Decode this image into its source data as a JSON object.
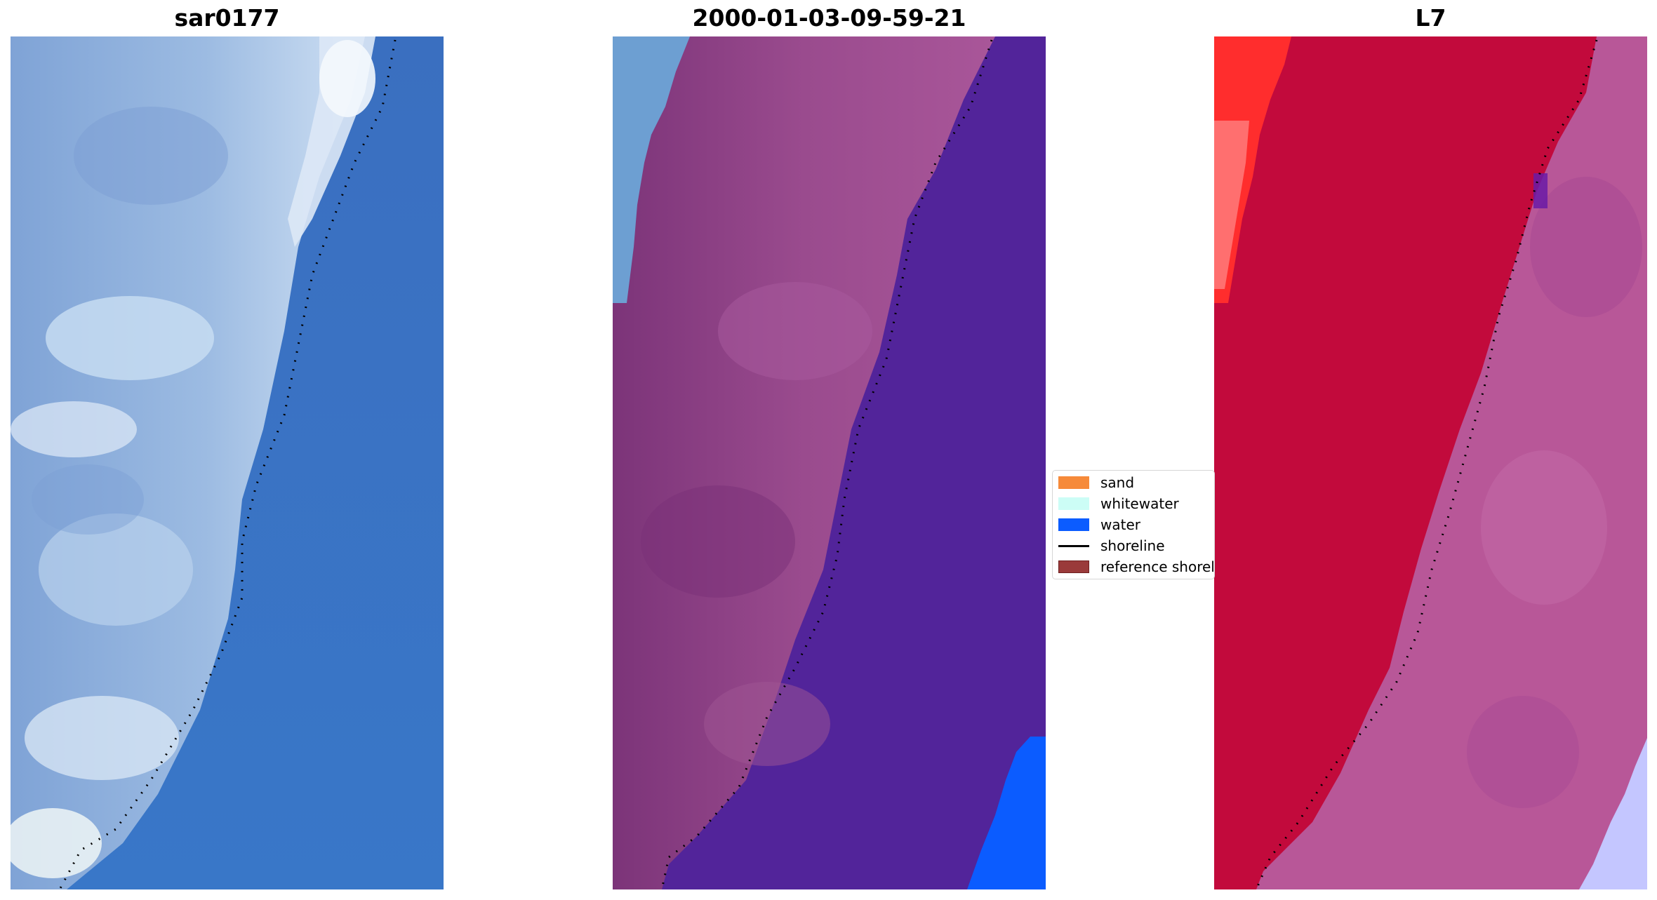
{
  "panels": [
    {
      "title": "sar0177"
    },
    {
      "title": "2000-01-03-09-59-21"
    },
    {
      "title": "L7"
    }
  ],
  "legend": {
    "items": [
      {
        "label": "sand",
        "kind": "patch",
        "color": "#f68a3a"
      },
      {
        "label": "whitewater",
        "kind": "patch",
        "color": "#ccfdf6"
      },
      {
        "label": "water",
        "kind": "patch",
        "color": "#0b5cff"
      },
      {
        "label": "shoreline",
        "kind": "line",
        "color": "#000000"
      },
      {
        "label": "reference shoreline",
        "kind": "patch",
        "color": "#9a3a3a"
      }
    ]
  },
  "colors": {
    "rgb_water": "#3a72c4",
    "rgb_land": "#8fb2dc",
    "rgb_bright": "#e6eefa",
    "classified_land": "#873c86",
    "classified_water": "#52249a",
    "classified_edge_left": "#6d9fd2",
    "classified_water_bottom": "#0b5cff",
    "falsecolor_land": "#c20a3c",
    "falsecolor_sea": "#b85798",
    "falsecolor_corner": "#ff1d1d",
    "falsecolor_sea_bottom": "#c4c6ff",
    "shoreline": "#000000"
  }
}
